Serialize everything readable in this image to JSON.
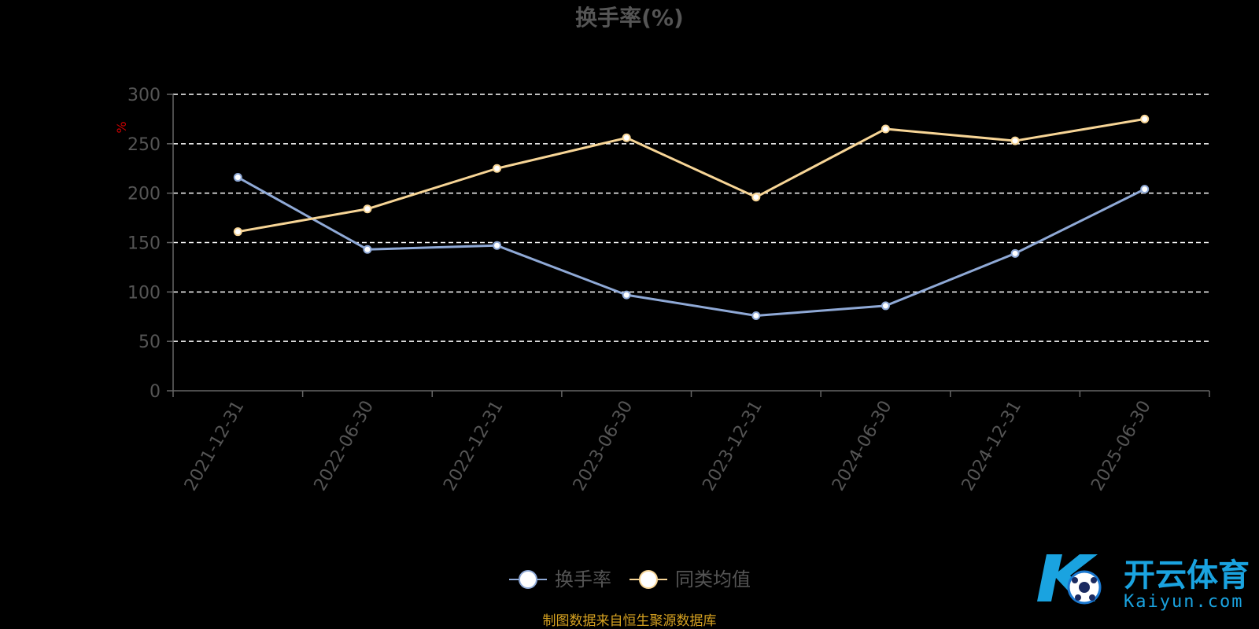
{
  "chart_data": {
    "type": "line",
    "title": "换手率(%)",
    "ylabel": "%",
    "xlabel": "",
    "categories": [
      "2021-12-31",
      "2022-06-30",
      "2022-12-31",
      "2023-06-30",
      "2023-12-31",
      "2024-06-30",
      "2024-12-31",
      "2025-06-30"
    ],
    "ylim": [
      0,
      300
    ],
    "yticks": [
      0,
      50,
      100,
      150,
      200,
      250,
      300
    ],
    "grid": true,
    "legend_position": "bottom",
    "series": [
      {
        "name": "换手率",
        "color": "#8fa9d6",
        "values": [
          216,
          143,
          147,
          97,
          76,
          86,
          139,
          204
        ]
      },
      {
        "name": "同类均值",
        "color": "#f7d596",
        "values": [
          161,
          184,
          225,
          256,
          196,
          265,
          253,
          275
        ]
      }
    ]
  },
  "footer": {
    "source": "制图数据来自恒生聚源数据库"
  },
  "watermark": {
    "cn": "开云体育",
    "en": "Kaiyun.com"
  }
}
